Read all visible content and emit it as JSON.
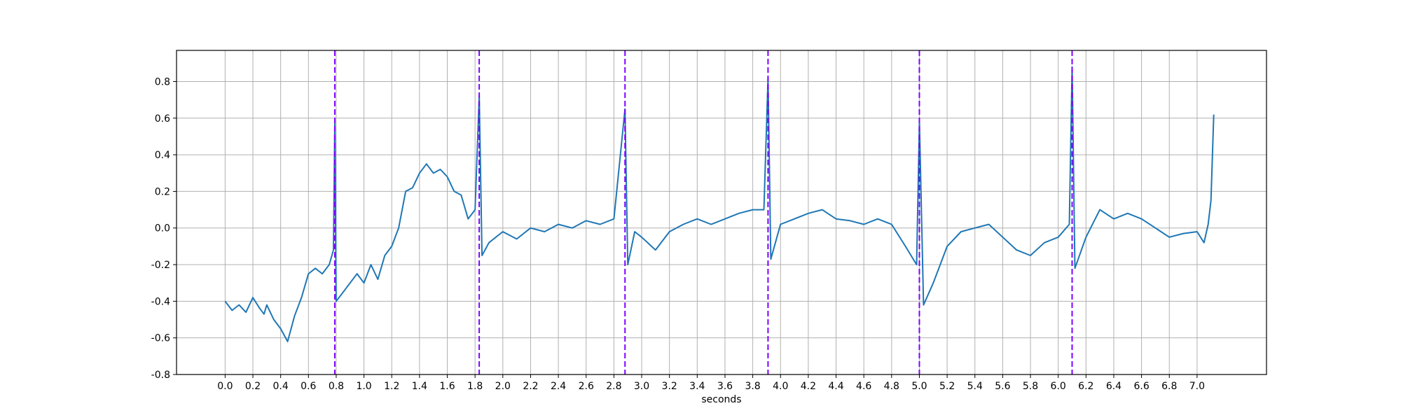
{
  "chart_data": {
    "type": "line",
    "title": "",
    "xlabel": "seconds",
    "ylabel": "",
    "xlim": [
      -0.35,
      7.5
    ],
    "ylim": [
      -0.8,
      0.97
    ],
    "grid": true,
    "xticks": [
      0.0,
      0.2,
      0.4,
      0.6,
      0.8,
      1.0,
      1.2,
      1.4,
      1.6,
      1.8,
      2.0,
      2.2,
      2.4,
      2.6,
      2.8,
      3.0,
      3.2,
      3.4,
      3.6,
      3.8,
      4.0,
      4.2,
      4.4,
      4.6,
      4.8,
      5.0,
      5.2,
      5.4,
      5.6,
      5.8,
      6.0,
      6.2,
      6.4,
      6.6,
      6.8,
      7.0
    ],
    "yticks": [
      -0.8,
      -0.6,
      -0.4,
      -0.2,
      0.0,
      0.2,
      0.4,
      0.6,
      0.8
    ],
    "series": [
      {
        "name": "",
        "color": "#1f77b4",
        "x": [
          0.0,
          0.05,
          0.1,
          0.15,
          0.2,
          0.25,
          0.28,
          0.3,
          0.35,
          0.4,
          0.45,
          0.5,
          0.55,
          0.6,
          0.65,
          0.7,
          0.75,
          0.78,
          0.79,
          0.8,
          0.85,
          0.9,
          0.95,
          1.0,
          1.05,
          1.1,
          1.15,
          1.2,
          1.25,
          1.3,
          1.35,
          1.4,
          1.45,
          1.5,
          1.55,
          1.6,
          1.65,
          1.7,
          1.75,
          1.8,
          1.83,
          1.85,
          1.9,
          2.0,
          2.1,
          2.2,
          2.3,
          2.4,
          2.5,
          2.6,
          2.7,
          2.8,
          2.88,
          2.9,
          2.95,
          3.0,
          3.1,
          3.2,
          3.3,
          3.4,
          3.5,
          3.6,
          3.7,
          3.8,
          3.88,
          3.91,
          3.93,
          4.0,
          4.1,
          4.2,
          4.3,
          4.4,
          4.5,
          4.6,
          4.7,
          4.8,
          4.9,
          4.98,
          5.0,
          5.03,
          5.1,
          5.2,
          5.3,
          5.4,
          5.5,
          5.6,
          5.7,
          5.8,
          5.9,
          6.0,
          6.08,
          6.1,
          6.12,
          6.2,
          6.3,
          6.4,
          6.5,
          6.6,
          6.7,
          6.8,
          6.9,
          7.0,
          7.05,
          7.08,
          7.1,
          7.12
        ],
        "values": [
          -0.4,
          -0.45,
          -0.42,
          -0.46,
          -0.38,
          -0.44,
          -0.47,
          -0.42,
          -0.5,
          -0.55,
          -0.62,
          -0.48,
          -0.38,
          -0.25,
          -0.22,
          -0.25,
          -0.2,
          -0.12,
          0.6,
          -0.4,
          -0.35,
          -0.3,
          -0.25,
          -0.3,
          -0.2,
          -0.28,
          -0.15,
          -0.1,
          0.0,
          0.2,
          0.22,
          0.3,
          0.35,
          0.3,
          0.32,
          0.28,
          0.2,
          0.18,
          0.05,
          0.1,
          0.72,
          -0.15,
          -0.08,
          -0.02,
          -0.06,
          0.0,
          -0.02,
          0.02,
          0.0,
          0.04,
          0.02,
          0.05,
          0.65,
          -0.2,
          -0.02,
          -0.05,
          -0.12,
          -0.02,
          0.02,
          0.05,
          0.02,
          0.05,
          0.08,
          0.1,
          0.1,
          0.82,
          -0.17,
          0.02,
          0.05,
          0.08,
          0.1,
          0.05,
          0.04,
          0.02,
          0.05,
          0.02,
          -0.1,
          -0.2,
          0.58,
          -0.42,
          -0.3,
          -0.1,
          -0.02,
          0.0,
          0.02,
          -0.05,
          -0.12,
          -0.15,
          -0.08,
          -0.05,
          0.02,
          0.88,
          -0.22,
          -0.05,
          0.1,
          0.05,
          0.08,
          0.05,
          0.0,
          -0.05,
          -0.03,
          -0.02,
          -0.08,
          0.02,
          0.15,
          0.62
        ]
      }
    ],
    "vlines": {
      "color": "#7f00ff",
      "style": "dashed",
      "x": [
        0.79,
        1.83,
        2.88,
        3.91,
        5.0,
        6.1
      ]
    }
  }
}
